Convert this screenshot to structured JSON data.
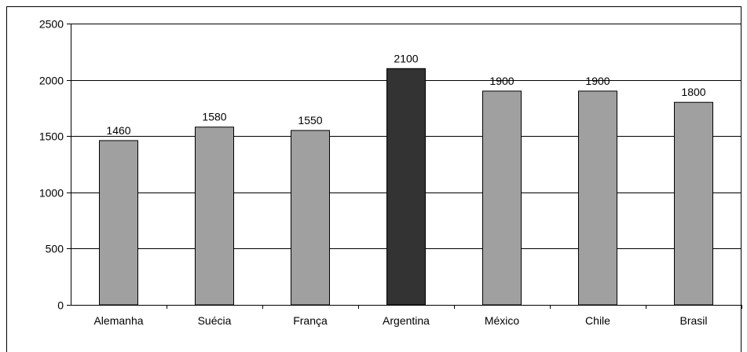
{
  "chart_data": {
    "type": "bar",
    "title": "",
    "xlabel": "",
    "ylabel": "",
    "categories": [
      "Alemanha",
      "Suécia",
      "França",
      "Argentina",
      "México",
      "Chile",
      "Brasil"
    ],
    "values": [
      1460,
      1580,
      1550,
      2100,
      1900,
      1900,
      1800
    ],
    "data_labels": [
      "1460",
      "1580",
      "1550",
      "2100",
      "1900",
      "1900",
      "1800"
    ],
    "ylim": [
      0,
      2500
    ],
    "yticks": [
      0,
      500,
      1000,
      1500,
      2000,
      2500
    ],
    "ytick_labels": [
      "0",
      "500",
      "1000",
      "1500",
      "2000",
      "2500"
    ],
    "grid": true,
    "legend": false,
    "highlight_category": "Argentina",
    "colors": {
      "bar": "#a0a0a0",
      "highlight": "#333333",
      "bar_stroke": "#000000",
      "grid": "#000000",
      "frame": "#000000"
    }
  }
}
